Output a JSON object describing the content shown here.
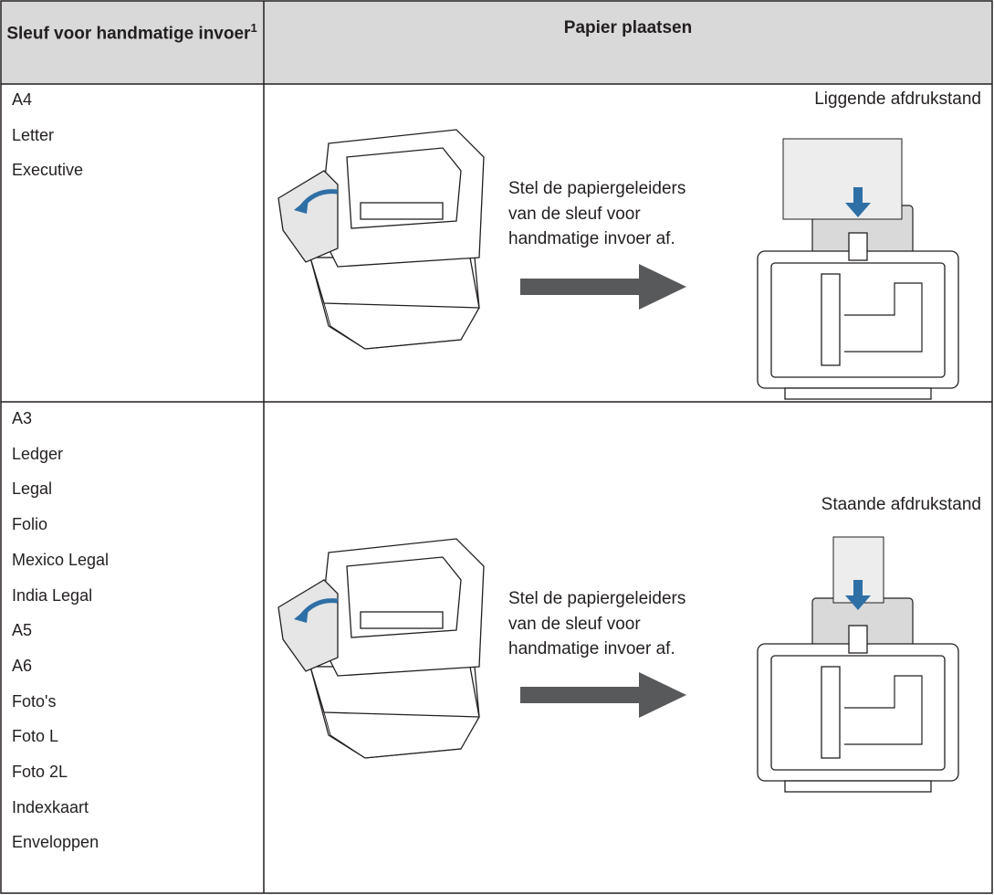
{
  "table": {
    "header": {
      "col1": "Sleuf voor handmatige invoer",
      "col1_note": "1",
      "col2": "Papier plaatsen"
    },
    "rows": [
      {
        "sizes": [
          "A4",
          "Letter",
          "Executive"
        ],
        "instruction": [
          "Stel de papiergeleiders",
          "van de sleuf voor",
          "handmatige invoer af."
        ],
        "orientation": "Liggende afdrukstand"
      },
      {
        "sizes": [
          "A3",
          "Ledger",
          "Legal",
          "Folio",
          "Mexico Legal",
          "India Legal",
          "A5",
          "A6",
          "Foto's",
          "Foto L",
          "Foto 2L",
          "Indexkaart",
          "Enveloppen"
        ],
        "instruction": [
          "Stel de papiergeleiders",
          "van de sleuf voor",
          "handmatige invoer af."
        ],
        "orientation": "Staande afdrukstand"
      }
    ]
  }
}
